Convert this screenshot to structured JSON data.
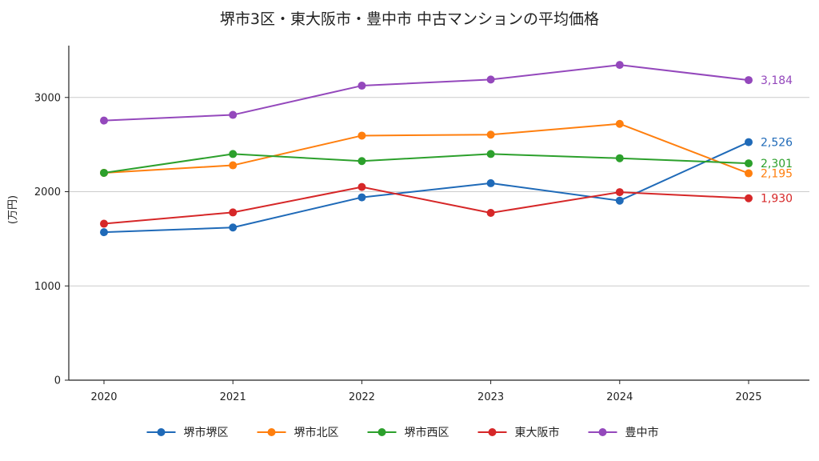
{
  "chart_data": {
    "type": "line",
    "title": "堺市3区・東大阪市・豊中市 中古マンションの平均価格",
    "xlabel": "",
    "ylabel": "(万円)",
    "categories": [
      "2020",
      "2021",
      "2022",
      "2023",
      "2024",
      "2025"
    ],
    "ylim": [
      0,
      3550
    ],
    "yticks": [
      0,
      1000,
      2000,
      3000
    ],
    "ytick_labels": [
      "0",
      "1000",
      "2000",
      "3000"
    ],
    "grid": "horizontal",
    "legend_position": "bottom",
    "series": [
      {
        "name": "堺市堺区",
        "color": "#1f6ab8",
        "values": [
          1570,
          1620,
          1940,
          2090,
          1905,
          2526
        ],
        "end_label": "2,526"
      },
      {
        "name": "堺市北区",
        "color": "#ff7f0e",
        "values": [
          2200,
          2280,
          2595,
          2605,
          2720,
          2195
        ],
        "end_label": "2,195"
      },
      {
        "name": "堺市西区",
        "color": "#2ca02c",
        "values": [
          2200,
          2400,
          2325,
          2400,
          2355,
          2301
        ],
        "end_label": "2,301"
      },
      {
        "name": "東大阪市",
        "color": "#d62728",
        "values": [
          1660,
          1780,
          2050,
          1775,
          1995,
          1930
        ],
        "end_label": "1,930"
      },
      {
        "name": "豊中市",
        "color": "#9448bc",
        "values": [
          2755,
          2815,
          3125,
          3190,
          3345,
          3184
        ],
        "end_label": "3,184"
      }
    ]
  }
}
